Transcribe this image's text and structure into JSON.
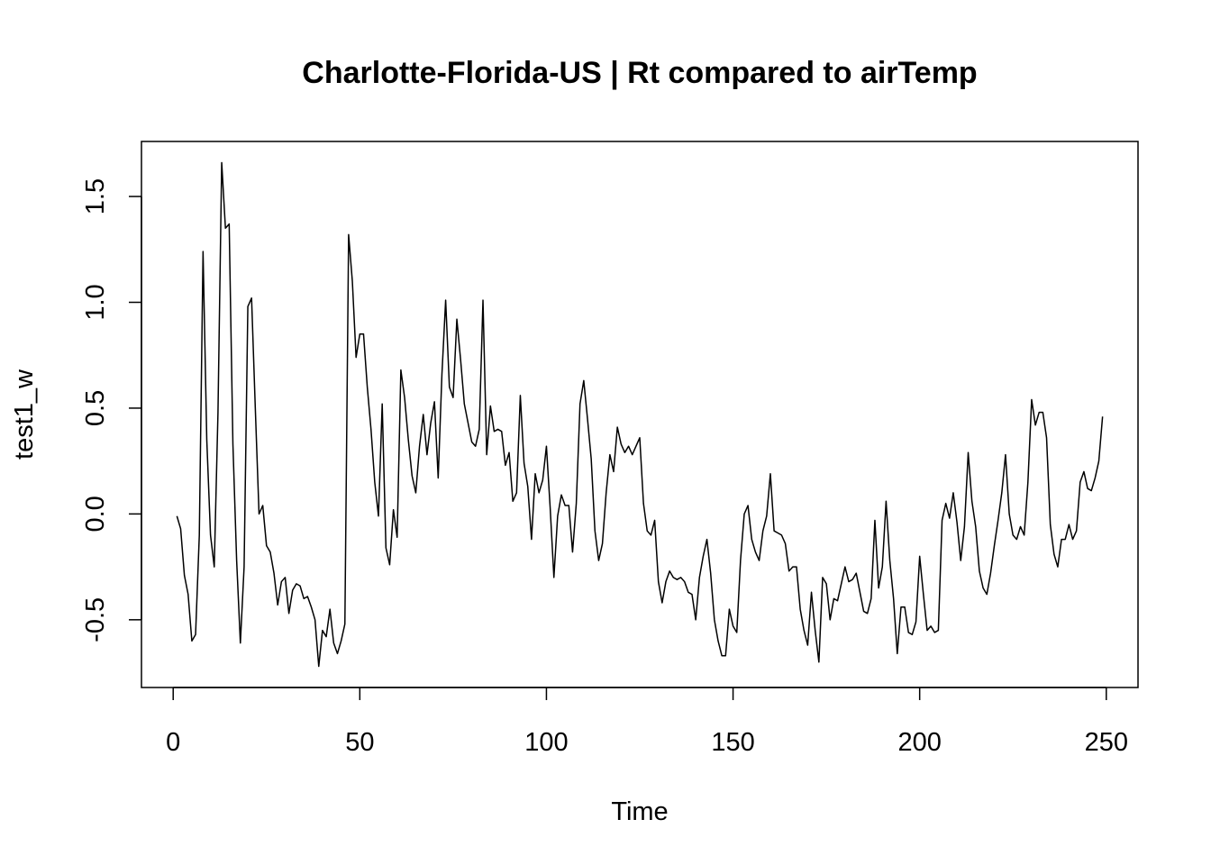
{
  "chart_data": {
    "type": "line",
    "title": "Charlotte-Florida-US | Rt compared to airTemp",
    "xlabel": "Time",
    "ylabel": "test1_w",
    "xlim": [
      -8.5,
      258.5
    ],
    "ylim": [
      -0.82,
      1.76
    ],
    "x_ticks": [
      0,
      50,
      100,
      150,
      200,
      250
    ],
    "y_ticks": [
      -0.5,
      0.0,
      0.5,
      1.0,
      1.5
    ],
    "x_tick_labels": [
      "0",
      "50",
      "100",
      "150",
      "200",
      "250"
    ],
    "y_tick_labels": [
      "-0.5",
      "0.0",
      "0.5",
      "1.0",
      "1.5"
    ],
    "grid": false,
    "series": [
      {
        "x_start": 1,
        "values": [
          -0.01,
          -0.07,
          -0.29,
          -0.38,
          -0.6,
          -0.57,
          -0.1,
          1.24,
          0.35,
          -0.1,
          -0.25,
          0.48,
          1.66,
          1.35,
          1.37,
          0.33,
          -0.22,
          -0.61,
          -0.25,
          0.98,
          1.02,
          0.5,
          0.0,
          0.04,
          -0.15,
          -0.18,
          -0.28,
          -0.43,
          -0.32,
          -0.3,
          -0.47,
          -0.36,
          -0.33,
          -0.34,
          -0.4,
          -0.39,
          -0.44,
          -0.5,
          -0.72,
          -0.55,
          -0.58,
          -0.45,
          -0.61,
          -0.66,
          -0.6,
          -0.52,
          1.32,
          1.1,
          0.74,
          0.85,
          0.85,
          0.6,
          0.4,
          0.15,
          -0.01,
          0.52,
          -0.16,
          -0.24,
          0.02,
          -0.11,
          0.68,
          0.55,
          0.35,
          0.18,
          0.1,
          0.32,
          0.47,
          0.28,
          0.43,
          0.53,
          0.17,
          0.66,
          1.01,
          0.6,
          0.55,
          0.92,
          0.73,
          0.52,
          0.43,
          0.34,
          0.32,
          0.4,
          1.01,
          0.28,
          0.51,
          0.39,
          0.4,
          0.39,
          0.23,
          0.29,
          0.06,
          0.1,
          0.56,
          0.24,
          0.13,
          -0.12,
          0.19,
          0.1,
          0.16,
          0.32,
          0.03,
          -0.3,
          -0.01,
          0.09,
          0.04,
          0.04,
          -0.18,
          0.05,
          0.52,
          0.63,
          0.45,
          0.26,
          -0.08,
          -0.22,
          -0.14,
          0.1,
          0.28,
          0.2,
          0.41,
          0.33,
          0.29,
          0.32,
          0.28,
          0.32,
          0.36,
          0.05,
          -0.08,
          -0.1,
          -0.03,
          -0.32,
          -0.42,
          -0.32,
          -0.27,
          -0.3,
          -0.31,
          -0.3,
          -0.32,
          -0.37,
          -0.38,
          -0.5,
          -0.3,
          -0.2,
          -0.12,
          -0.28,
          -0.5,
          -0.6,
          -0.67,
          -0.67,
          -0.45,
          -0.53,
          -0.56,
          -0.22,
          0.0,
          0.04,
          -0.12,
          -0.18,
          -0.22,
          -0.08,
          -0.01,
          0.19,
          -0.08,
          -0.09,
          -0.1,
          -0.14,
          -0.27,
          -0.25,
          -0.25,
          -0.45,
          -0.55,
          -0.62,
          -0.37,
          -0.55,
          -0.7,
          -0.3,
          -0.33,
          -0.5,
          -0.4,
          -0.41,
          -0.33,
          -0.25,
          -0.32,
          -0.31,
          -0.28,
          -0.37,
          -0.46,
          -0.47,
          -0.4,
          -0.03,
          -0.35,
          -0.25,
          0.06,
          -0.22,
          -0.4,
          -0.66,
          -0.44,
          -0.44,
          -0.56,
          -0.57,
          -0.51,
          -0.2,
          -0.38,
          -0.55,
          -0.53,
          -0.56,
          -0.55,
          -0.03,
          0.05,
          -0.02,
          0.1,
          -0.04,
          -0.22,
          -0.06,
          0.29,
          0.06,
          -0.06,
          -0.27,
          -0.35,
          -0.38,
          -0.28,
          -0.15,
          -0.03,
          0.1,
          0.28,
          0.0,
          -0.1,
          -0.12,
          -0.06,
          -0.1,
          0.15,
          0.54,
          0.42,
          0.48,
          0.48,
          0.36,
          -0.05,
          -0.19,
          -0.25,
          -0.12,
          -0.12,
          -0.05,
          -0.12,
          -0.08,
          0.15,
          0.2,
          0.12,
          0.11,
          0.17,
          0.25,
          0.46
        ]
      }
    ]
  }
}
